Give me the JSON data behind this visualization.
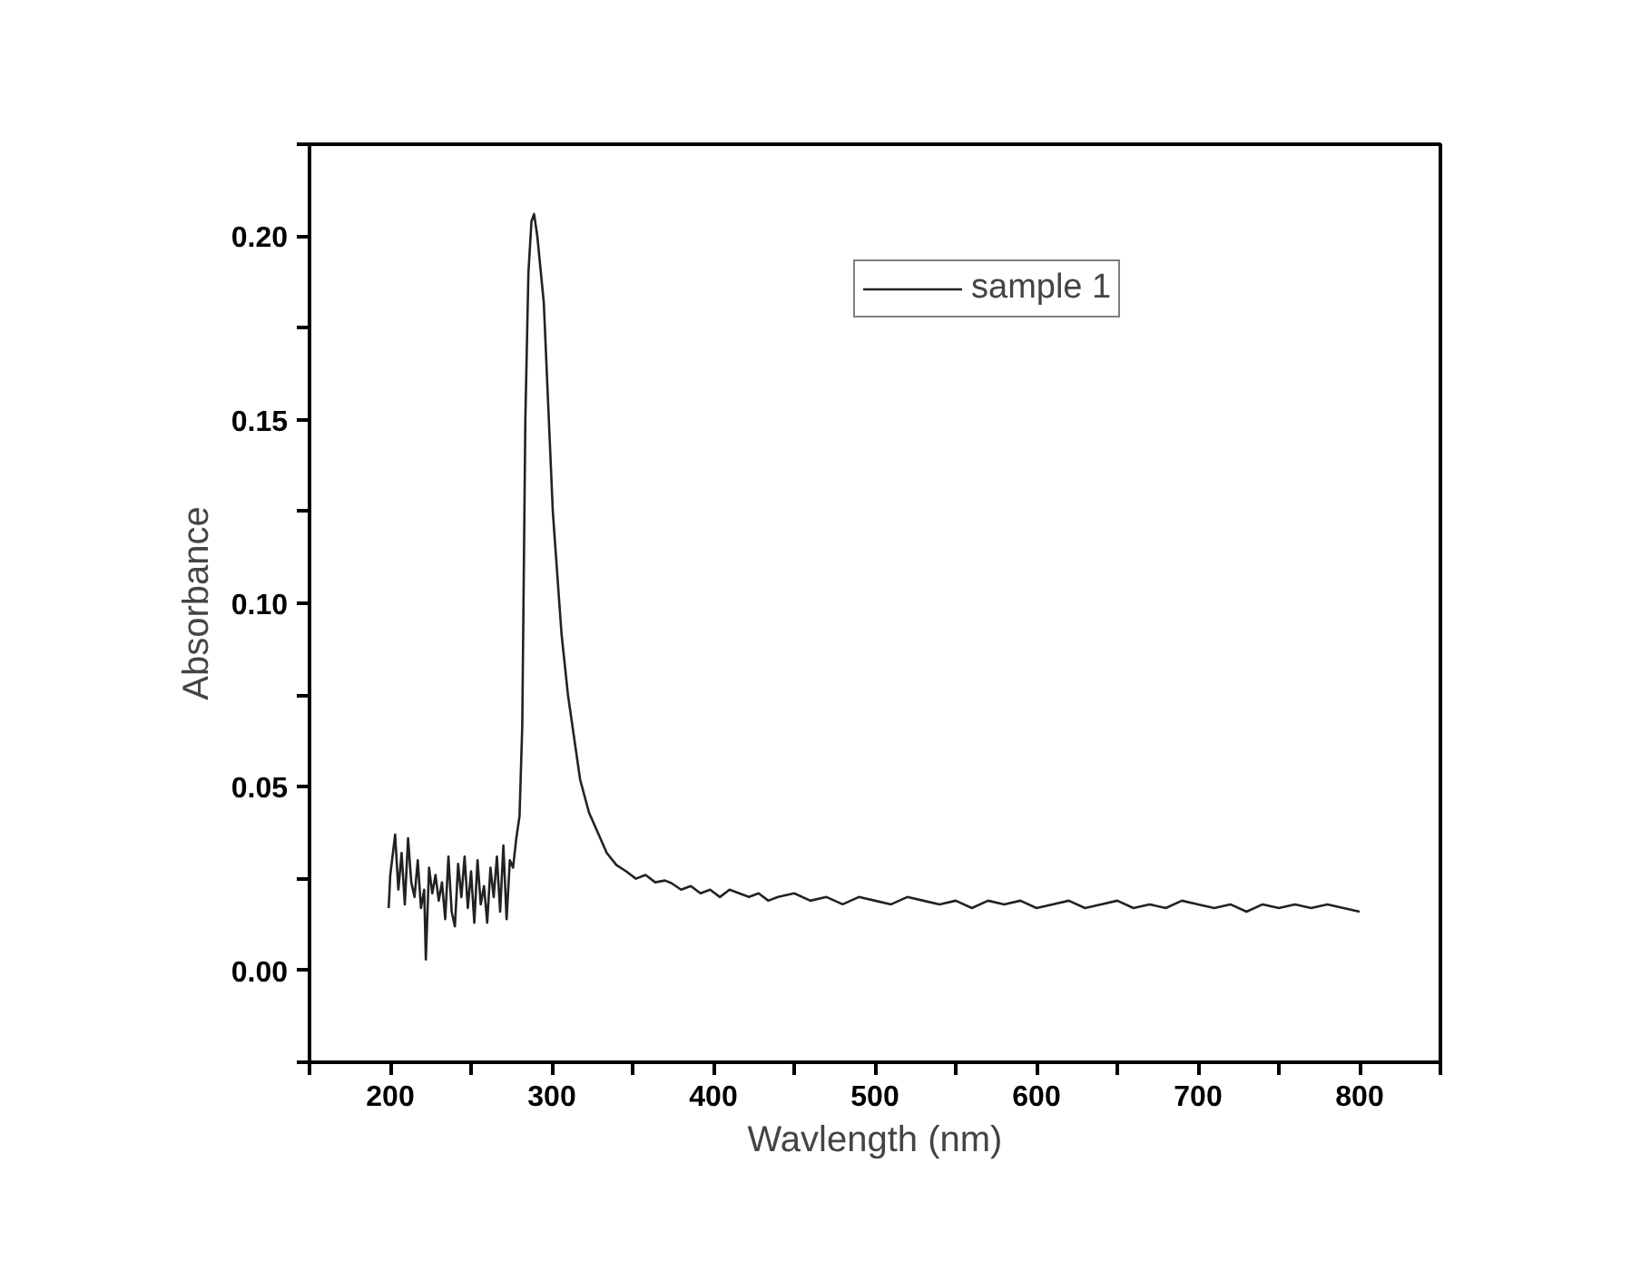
{
  "chart_data": {
    "type": "line",
    "xlabel": "Wavlength (nm)",
    "ylabel": "Absorbance",
    "xlim": [
      150,
      850
    ],
    "ylim": [
      -0.025,
      0.225
    ],
    "xticks": [
      {
        "value": 150,
        "label": null
      },
      200,
      {
        "value": 250,
        "label": null
      },
      300,
      {
        "value": 350,
        "label": null
      },
      400,
      {
        "value": 450,
        "label": null
      },
      500,
      {
        "value": 550,
        "label": null
      },
      600,
      {
        "value": 650,
        "label": null
      },
      700,
      {
        "value": 750,
        "label": null
      },
      800,
      {
        "value": 850,
        "label": null
      }
    ],
    "yticks": [
      {
        "value": -0.025,
        "label": null
      },
      {
        "value": 0.0,
        "label": "0.00"
      },
      {
        "value": 0.025,
        "label": null
      },
      {
        "value": 0.05,
        "label": "0.05"
      },
      {
        "value": 0.075,
        "label": null
      },
      {
        "value": 0.1,
        "label": "0.10"
      },
      {
        "value": 0.125,
        "label": null
      },
      {
        "value": 0.15,
        "label": "0.15"
      },
      {
        "value": 0.175,
        "label": null
      },
      {
        "value": 0.2,
        "label": "0.20"
      },
      {
        "value": 0.225,
        "label": null
      }
    ],
    "grid": false,
    "legend": "top right",
    "marker": "none",
    "line_style": "solid",
    "series": [
      {
        "name": "sample 1",
        "color": "#222222",
        "x": [
          199,
          200,
          203,
          205,
          207,
          209,
          211,
          213,
          215,
          217,
          219,
          221,
          222,
          224,
          226,
          228,
          230,
          232,
          234,
          236,
          238,
          240,
          242,
          244,
          246,
          248,
          250,
          252,
          254,
          256,
          258,
          260,
          262,
          264,
          266,
          268,
          270,
          272,
          274,
          276,
          278,
          280,
          281.7,
          283.6,
          285.5,
          287.4,
          289,
          291,
          295,
          300.6,
          306,
          310,
          317.5,
          323,
          329,
          334,
          340,
          346,
          352,
          358,
          364,
          370,
          374,
          380,
          386,
          392,
          398,
          404,
          410,
          416,
          422,
          428,
          434,
          440,
          450,
          460,
          470,
          480,
          490,
          500,
          510,
          520,
          530,
          540,
          550,
          560,
          570,
          580,
          590,
          600,
          610,
          620,
          630,
          640,
          650,
          660,
          670,
          680,
          690,
          700,
          710,
          720,
          730,
          740,
          750,
          760,
          770,
          780,
          790,
          800
        ],
        "values": [
          0.017,
          0.026,
          0.037,
          0.022,
          0.032,
          0.018,
          0.036,
          0.024,
          0.02,
          0.03,
          0.017,
          0.022,
          0.003,
          0.028,
          0.021,
          0.026,
          0.019,
          0.024,
          0.014,
          0.031,
          0.016,
          0.012,
          0.029,
          0.02,
          0.031,
          0.017,
          0.027,
          0.013,
          0.03,
          0.018,
          0.023,
          0.013,
          0.028,
          0.02,
          0.031,
          0.016,
          0.034,
          0.014,
          0.03,
          0.028,
          0.036,
          0.042,
          0.0668,
          0.15,
          0.19,
          0.204,
          0.206,
          0.2,
          0.182,
          0.125,
          0.0916,
          0.075,
          0.052,
          0.043,
          0.037,
          0.032,
          0.0287,
          0.027,
          0.025,
          0.026,
          0.024,
          0.0245,
          0.0238,
          0.022,
          0.023,
          0.021,
          0.022,
          0.02,
          0.022,
          0.021,
          0.02,
          0.021,
          0.019,
          0.02,
          0.021,
          0.019,
          0.02,
          0.018,
          0.02,
          0.019,
          0.018,
          0.02,
          0.019,
          0.018,
          0.019,
          0.017,
          0.019,
          0.018,
          0.019,
          0.017,
          0.018,
          0.019,
          0.017,
          0.018,
          0.019,
          0.017,
          0.018,
          0.017,
          0.019,
          0.018,
          0.017,
          0.018,
          0.016,
          0.018,
          0.017,
          0.018,
          0.017,
          0.018,
          0.017,
          0.016
        ]
      }
    ]
  }
}
